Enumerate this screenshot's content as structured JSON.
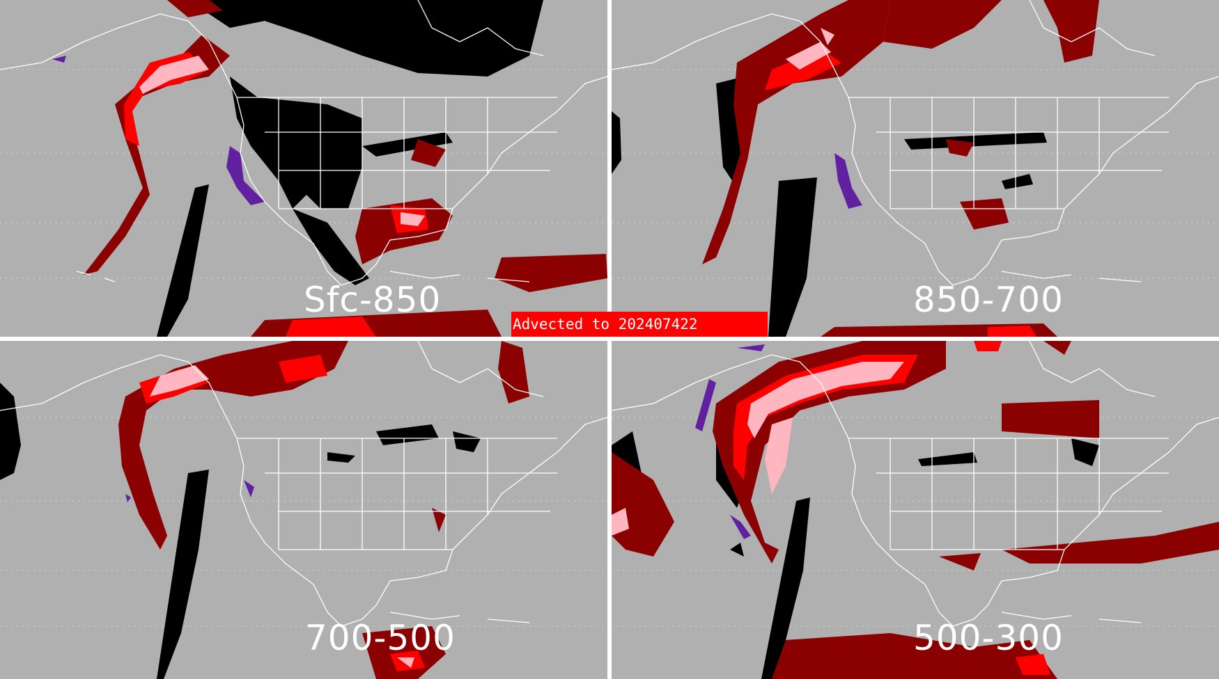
{
  "panels": [
    {
      "id": "tl",
      "label": "Sfc-850"
    },
    {
      "id": "tr",
      "label": "850-700"
    },
    {
      "id": "bl",
      "label": "700-500"
    },
    {
      "id": "br",
      "label": "500-300"
    }
  ],
  "banner": {
    "text": "Advected to 202407422"
  },
  "colors": {
    "background": "#b0b0b0",
    "border": "#ffffff",
    "map_lines": "#ffffff",
    "grid_dots": "#d8d8d8",
    "dark_red": "#8b0000",
    "red": "#ff0000",
    "pink": "#ffb6c1",
    "black": "#000000",
    "purple": "#6020a0",
    "banner": "#ff0000"
  }
}
